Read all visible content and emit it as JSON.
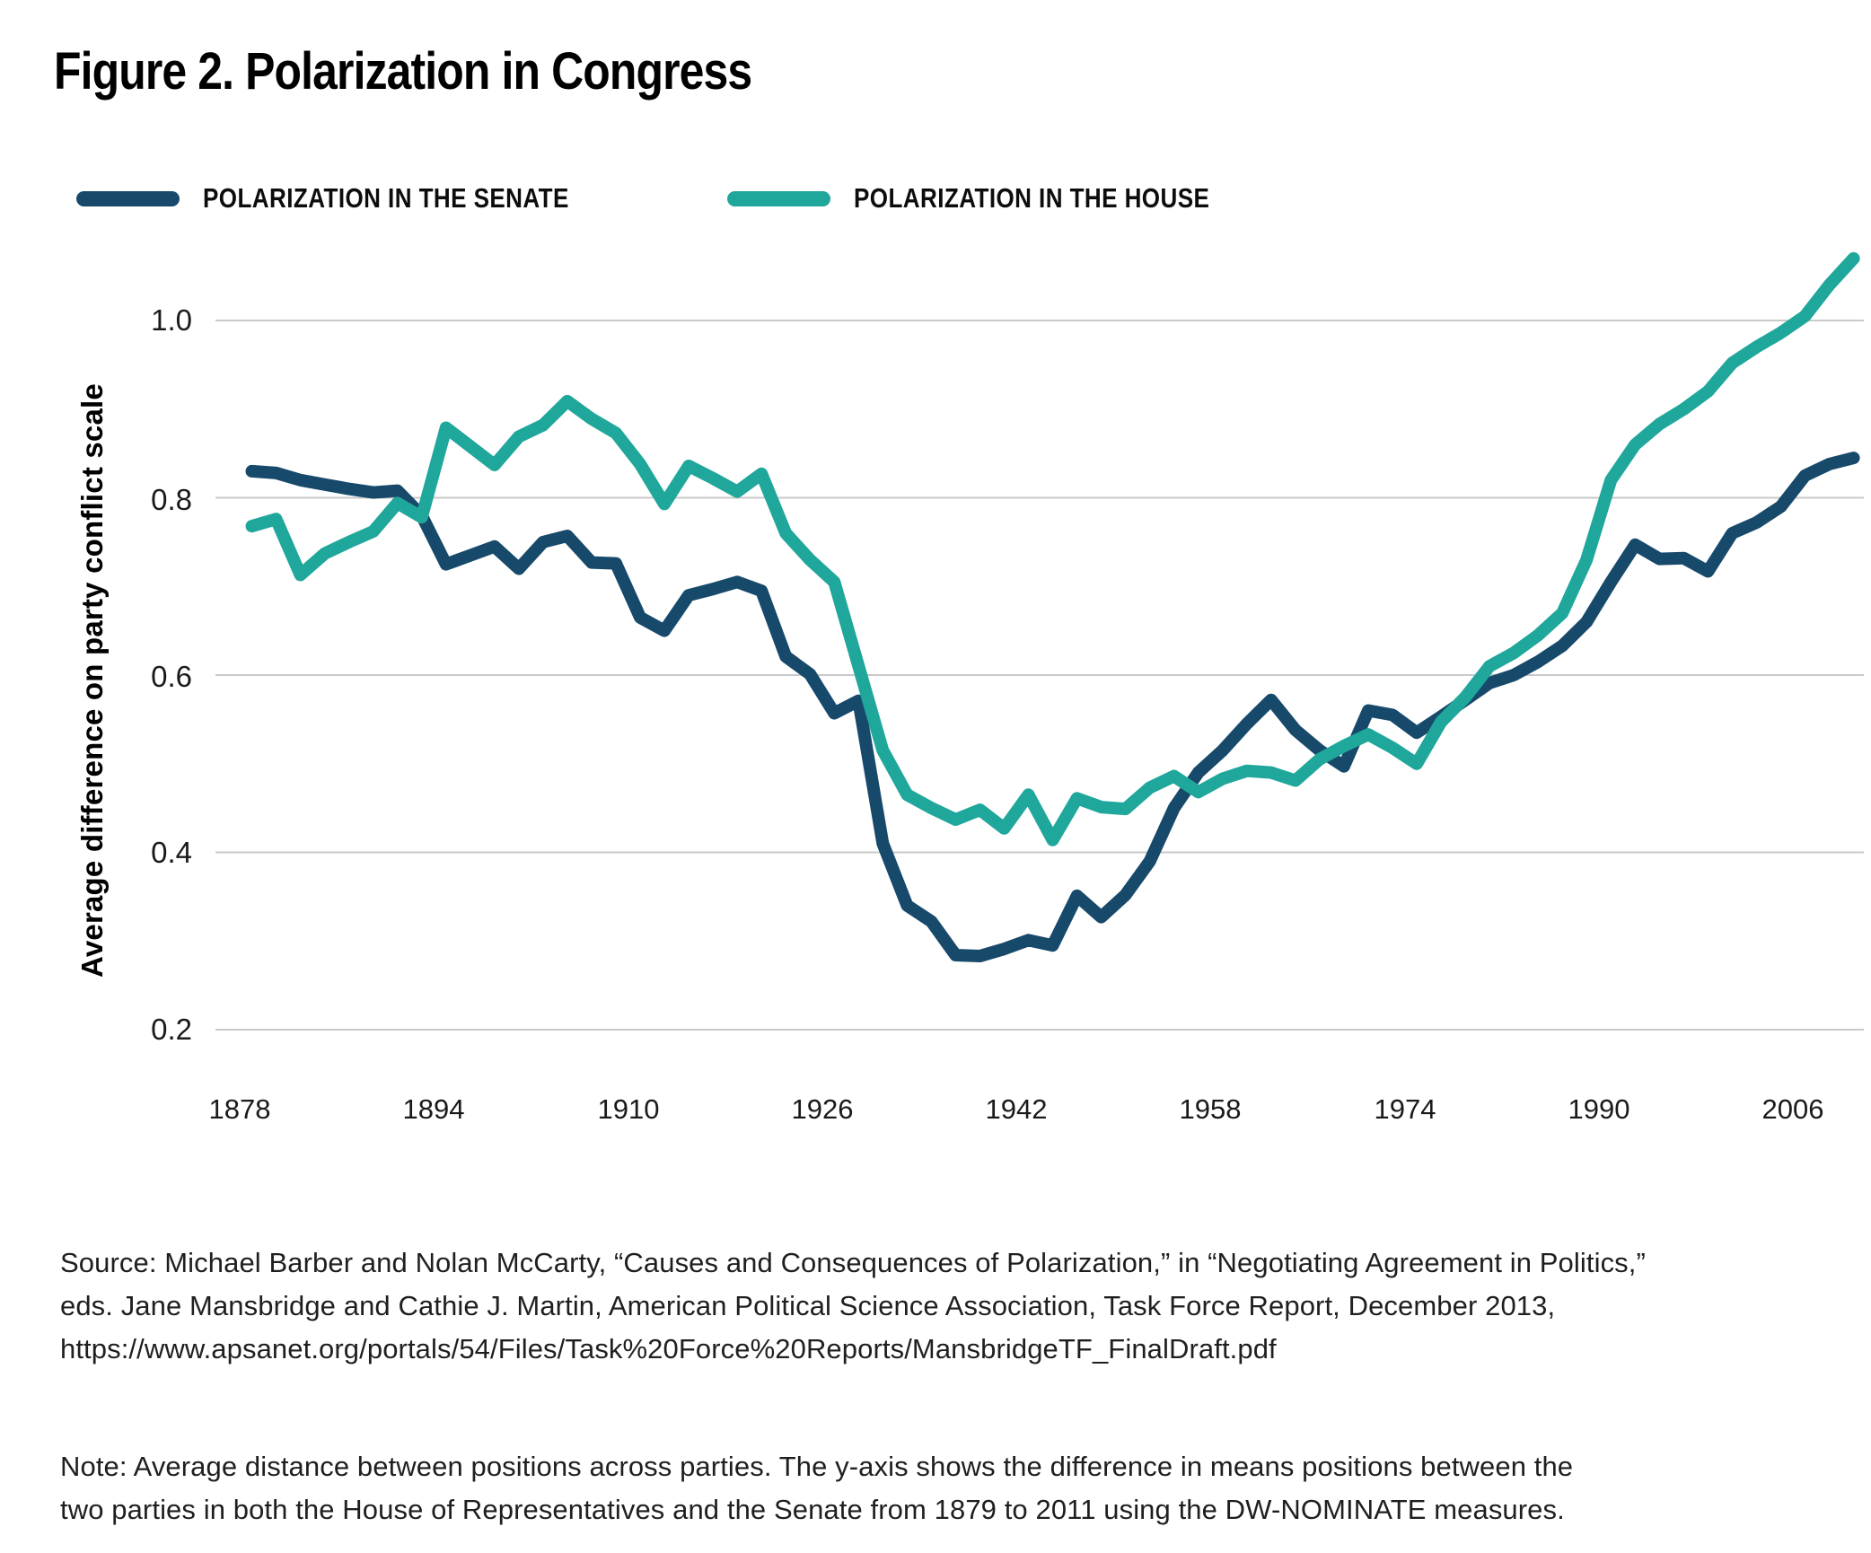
{
  "title": "Figure 2. Polarization in Congress",
  "legend": [
    {
      "label": "POLARIZATION IN THE SENATE",
      "color": "#17496B"
    },
    {
      "label": "POLARIZATION IN THE HOUSE",
      "color": "#1FA79B"
    }
  ],
  "chart_data": {
    "type": "line",
    "title": "Figure 2. Polarization in Congress",
    "xlabel": "",
    "ylabel": "Average difference on party conflict scale",
    "x_ticks": [
      1878,
      1894,
      1910,
      1926,
      1942,
      1958,
      1974,
      1990,
      2006
    ],
    "y_ticks": [
      1.0,
      0.8,
      0.6,
      0.4,
      0.2
    ],
    "y_tick_labels": [
      "1.0",
      "0.8",
      "0.6",
      "0.4",
      "0.2"
    ],
    "ylim": [
      0.13,
      1.12
    ],
    "xlim": [
      1876,
      2012
    ],
    "grid": "horizontal",
    "legend_position": "top",
    "years": [
      1879,
      1881,
      1883,
      1885,
      1887,
      1889,
      1891,
      1893,
      1895,
      1897,
      1899,
      1901,
      1903,
      1905,
      1907,
      1909,
      1911,
      1913,
      1915,
      1917,
      1919,
      1921,
      1923,
      1925,
      1927,
      1929,
      1931,
      1933,
      1935,
      1937,
      1939,
      1941,
      1943,
      1945,
      1947,
      1949,
      1951,
      1953,
      1955,
      1957,
      1959,
      1961,
      1963,
      1965,
      1967,
      1969,
      1971,
      1973,
      1975,
      1977,
      1979,
      1981,
      1983,
      1985,
      1987,
      1989,
      1991,
      1993,
      1995,
      1997,
      1999,
      2001,
      2003,
      2005,
      2007,
      2009,
      2011
    ],
    "series": [
      {
        "name": "Polarization in the Senate",
        "color": "#17496B",
        "values": [
          0.83,
          0.828,
          0.82,
          0.815,
          0.81,
          0.806,
          0.808,
          0.78,
          0.725,
          0.735,
          0.745,
          0.72,
          0.75,
          0.757,
          0.727,
          0.726,
          0.665,
          0.65,
          0.69,
          0.697,
          0.705,
          0.695,
          0.621,
          0.601,
          0.557,
          0.571,
          0.41,
          0.34,
          0.322,
          0.284,
          0.283,
          0.291,
          0.301,
          0.295,
          0.351,
          0.327,
          0.352,
          0.39,
          0.45,
          0.49,
          0.515,
          0.545,
          0.572,
          0.538,
          0.515,
          0.497,
          0.56,
          0.555,
          0.535,
          0.553,
          0.572,
          0.591,
          0.6,
          0.615,
          0.633,
          0.66,
          0.705,
          0.747,
          0.731,
          0.732,
          0.717,
          0.76,
          0.772,
          0.79,
          0.825,
          0.838,
          0.845
        ]
      },
      {
        "name": "Polarization in the House",
        "color": "#1FA79B",
        "values": [
          0.768,
          0.776,
          0.713,
          0.737,
          0.75,
          0.762,
          0.794,
          0.778,
          0.879,
          0.858,
          0.837,
          0.869,
          0.882,
          0.909,
          0.889,
          0.873,
          0.838,
          0.793,
          0.836,
          0.822,
          0.807,
          0.827,
          0.76,
          0.73,
          0.705,
          0.61,
          0.515,
          0.465,
          0.45,
          0.437,
          0.448,
          0.427,
          0.465,
          0.414,
          0.461,
          0.451,
          0.449,
          0.473,
          0.486,
          0.468,
          0.483,
          0.492,
          0.49,
          0.481,
          0.505,
          0.52,
          0.533,
          0.518,
          0.5,
          0.547,
          0.575,
          0.61,
          0.625,
          0.645,
          0.67,
          0.73,
          0.82,
          0.86,
          0.883,
          0.9,
          0.92,
          0.952,
          0.97,
          0.986,
          1.005,
          1.04,
          1.07
        ]
      }
    ]
  },
  "source_lines": [
    "Source: Michael Barber and Nolan McCarty, “Causes and Consequences of Polarization,” in “Negotiating Agreement in Politics,”",
    "eds. Jane Mansbridge and Cathie J. Martin, American Political Science Association, Task Force Report, December 2013,",
    "https://www.apsanet.org/portals/54/Files/Task%20Force%20Reports/MansbridgeTF_FinalDraft.pdf"
  ],
  "note_lines": [
    "Note: Average distance between positions across parties. The y-axis shows the difference in means positions between the",
    "two parties in both the House of Representatives and the Senate from 1879 to 2011 using the DW-NOMINATE measures."
  ]
}
